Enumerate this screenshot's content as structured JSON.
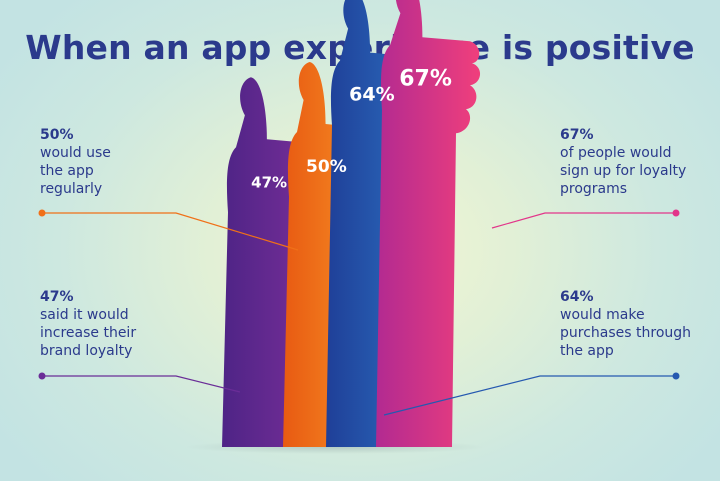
{
  "title": "When an app experience is positive",
  "chart_data": {
    "type": "bar",
    "categories": [
      "47%",
      "50%",
      "64%",
      "67%"
    ],
    "values": [
      47,
      50,
      64,
      67
    ],
    "unit": "%",
    "items": [
      {
        "pct": "47%",
        "desc": "said it would\nincrease their\nbrand loyalty",
        "color": "#6a2d97"
      },
      {
        "pct": "50%",
        "desc": "would use\nthe app\nregularly",
        "color": "#f07018"
      },
      {
        "pct": "64%",
        "desc": "would make\npurchases through\nthe app",
        "color": "#2659b0"
      },
      {
        "pct": "67%",
        "desc": "of people would\nsign up for loyalty\nprograms",
        "color": "#e2358a"
      }
    ]
  }
}
